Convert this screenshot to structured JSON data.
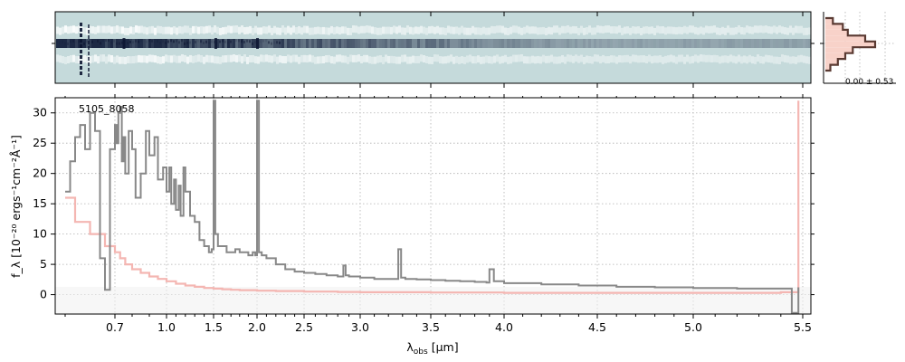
{
  "chart_data": [
    {
      "type": "heatmap",
      "panel": "2d-spectrum",
      "colors": {
        "background": "#c5dadb",
        "trace": "#1d2a45",
        "bright": "#ffffff"
      }
    },
    {
      "type": "line",
      "panel": "1d-spectrum",
      "label": "5105_8058",
      "xlabel_main": "λ",
      "xlabel_sub": "obs",
      "xlabel_unit": "[μm]",
      "ylabel": "f_λ [10⁻²⁰ ergs⁻¹cm⁻²Å⁻¹]",
      "xticks": [
        "0.7",
        "1.0",
        "1.5",
        "2.0",
        "2.5",
        "3.0",
        "3.5",
        "4.0",
        "4.5",
        "5.0",
        "5.5"
      ],
      "xtick_values": [
        0.7,
        1.0,
        1.5,
        2.0,
        2.5,
        3.0,
        3.5,
        4.0,
        4.5,
        5.0,
        5.5
      ],
      "yticks": [
        "0",
        "5",
        "10",
        "15",
        "20",
        "25",
        "30"
      ],
      "ylim": [
        -3.2,
        32.5
      ],
      "xlim": [
        0.58,
        5.53
      ],
      "grid": true,
      "series": [
        {
          "color": "#888888",
          "x": [
            0.6,
            0.61,
            0.62,
            0.63,
            0.64,
            0.65,
            0.66,
            0.67,
            0.68,
            0.69,
            0.7,
            0.71,
            0.72,
            0.73,
            0.74,
            0.75,
            0.76,
            0.78,
            0.8,
            0.82,
            0.85,
            0.88,
            0.9,
            0.93,
            0.95,
            0.98,
            1.0,
            1.03,
            1.05,
            1.08,
            1.1,
            1.13,
            1.15,
            1.18,
            1.2,
            1.25,
            1.3,
            1.35,
            1.4,
            1.45,
            1.48,
            1.5,
            1.52,
            1.55,
            1.6,
            1.65,
            1.7,
            1.75,
            1.8,
            1.85,
            1.9,
            1.95,
            1.98,
            2.0,
            2.02,
            2.05,
            2.1,
            2.2,
            2.3,
            2.4,
            2.5,
            2.6,
            2.7,
            2.8,
            2.85,
            2.87,
            2.9,
            3.0,
            3.1,
            3.2,
            3.27,
            3.29,
            3.32,
            3.4,
            3.5,
            3.6,
            3.7,
            3.8,
            3.88,
            3.9,
            3.93,
            4.0,
            4.2,
            4.4,
            4.6,
            4.8,
            5.0,
            5.2,
            5.4,
            5.45,
            5.48
          ],
          "y": [
            17,
            22,
            26,
            28,
            24,
            30,
            27,
            6,
            0.8,
            24,
            28,
            25,
            30,
            31,
            22,
            26,
            20,
            27,
            24,
            16,
            20,
            27,
            23,
            26,
            19,
            21,
            17,
            21,
            15,
            19,
            14,
            18,
            13,
            21,
            17,
            13,
            12,
            9,
            8,
            7,
            7.5,
            32,
            10,
            8,
            8,
            7,
            7,
            7.5,
            7,
            7,
            6.5,
            7,
            6.5,
            32,
            7,
            6.5,
            6,
            5,
            4.2,
            3.8,
            3.6,
            3.4,
            3.2,
            3,
            4.8,
            3.2,
            3,
            2.8,
            2.6,
            2.6,
            7.5,
            2.8,
            2.6,
            2.5,
            2.4,
            2.3,
            2.2,
            2.1,
            2,
            4.2,
            2.2,
            1.9,
            1.7,
            1.5,
            1.3,
            1.2,
            1.1,
            1.0,
            1.0,
            -3,
            1.2
          ]
        },
        {
          "color": "#f4b6b2",
          "x": [
            0.6,
            0.62,
            0.65,
            0.68,
            0.7,
            0.73,
            0.76,
            0.8,
            0.85,
            0.9,
            0.95,
            1.0,
            1.1,
            1.2,
            1.3,
            1.4,
            1.5,
            1.6,
            1.7,
            1.8,
            2.0,
            2.2,
            2.5,
            2.8,
            3.0,
            3.5,
            4.0,
            4.5,
            5.0,
            5.4,
            5.48
          ],
          "y": [
            16,
            12,
            10,
            8,
            7,
            6,
            5,
            4.2,
            3.6,
            3,
            2.6,
            2.2,
            1.8,
            1.5,
            1.3,
            1.1,
            1,
            0.9,
            0.8,
            0.75,
            0.65,
            0.6,
            0.5,
            0.45,
            0.4,
            0.35,
            0.3,
            0.3,
            0.3,
            0.4,
            32
          ]
        }
      ]
    },
    {
      "type": "bar",
      "panel": "histogram",
      "stat": "0.00 ± 0.53",
      "values": [
        0.15,
        0.35,
        0.45,
        0.8,
        1.0,
        0.55,
        0.4,
        0.25,
        0.1
      ],
      "bar_color": "#c9785f",
      "fill_color": "#f8d2c9"
    }
  ]
}
